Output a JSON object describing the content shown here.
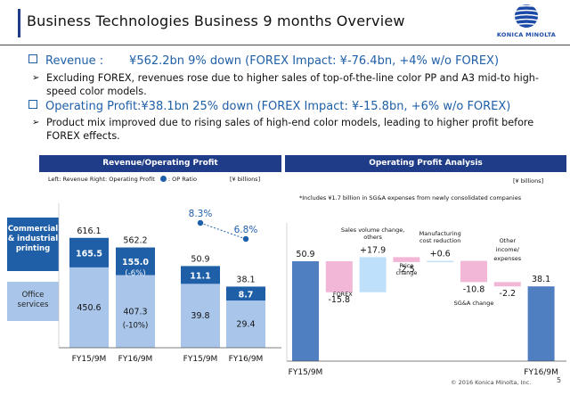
{
  "header": {
    "title": "Business Technologies Business 9 months Overview",
    "logo_text": "KONICA MINOLTA",
    "page_number": "5",
    "copyright": "© 2016 Konica Minolta, Inc."
  },
  "bullets": {
    "revenue_head": "Revenue :       ¥562.2bn  9% down (FOREX Impact: ¥-76.4bn, +4% w/o FOREX)",
    "revenue_body": "Excluding FOREX, revenues rose due to higher sales of top-of-the-line color PP and A3 mid-to high-speed color models.",
    "op_head": "Operating Profit:¥38.1bn  25% down (FOREX Impact: ¥-15.8bn, +6% w/o FOREX)",
    "op_body": "Product mix improved due to rising sales of high-end color models, leading to higher profit before FOREX effects."
  },
  "left_panel": {
    "title": "Revenue/Operating Profit",
    "subtitle": "Left: Revenue  Right: Operating Profit",
    "op_ratio_legend": ": OP Ratio",
    "unit": "[¥ billions]",
    "legend_commercial": "Commercial & industrial printing",
    "legend_office": "Office services"
  },
  "right_panel": {
    "title": "Operating Profit Analysis",
    "unit": "[¥ billions]",
    "note": "*Includes ¥1.7 billion in SG&A expenses from newly consolidated companies"
  },
  "colors": {
    "navy": "#1f3c88",
    "dark_blue": "#1f5fa8",
    "light_blue": "#a9c6ea",
    "waterfall_blue": "#4f7fc1",
    "pink": "#f2b6d7",
    "light_cyan": "#bfe0fb"
  },
  "chart_data": [
    {
      "type": "bar",
      "title": "Revenue",
      "categories": [
        "FY15/9M",
        "FY16/9M"
      ],
      "totals": [
        616.1,
        562.2
      ],
      "series": [
        {
          "name": "Office services",
          "values": [
            450.6,
            407.3
          ]
        },
        {
          "name": "Commercial & industrial printing",
          "values": [
            165.5,
            155.0
          ]
        }
      ],
      "annotations": {
        "office_change": "(-10%)",
        "commercial_change": "(-6%)"
      }
    },
    {
      "type": "bar",
      "title": "Operating Profit",
      "categories": [
        "FY15/9M",
        "FY16/9M"
      ],
      "totals": [
        50.9,
        38.1
      ],
      "series": [
        {
          "name": "Office services",
          "values": [
            39.8,
            29.4
          ]
        },
        {
          "name": "Commercial & industrial printing",
          "values": [
            11.1,
            8.7
          ]
        }
      ],
      "op_ratio": {
        "values": [
          8.3,
          6.8
        ],
        "labels": [
          "8.3%",
          "6.8%"
        ]
      }
    },
    {
      "type": "bar",
      "title": "Operating Profit Analysis",
      "steps": [
        {
          "label": "FY15/9M",
          "value": 50.9,
          "kind": "total",
          "value_label": "50.9"
        },
        {
          "label": "FOREX",
          "value": -15.8,
          "kind": "delta",
          "value_label": "-15.8"
        },
        {
          "label": "Sales volume change, others",
          "value": 17.9,
          "kind": "delta",
          "value_label": "+17.9"
        },
        {
          "label": "Price change",
          "value": -2.5,
          "kind": "delta",
          "value_label": "-2.5"
        },
        {
          "label": "Manufacturing cost reduction",
          "value": 0.6,
          "kind": "delta",
          "value_label": "+0.6"
        },
        {
          "label": "SG&A change",
          "value": -10.8,
          "kind": "delta",
          "value_label": "-10.8"
        },
        {
          "label": "Other income/ expenses",
          "value": -2.2,
          "kind": "delta",
          "value_label": "-2.2"
        },
        {
          "label": "FY16/9M",
          "value": 38.1,
          "kind": "total",
          "value_label": "38.1"
        }
      ]
    }
  ]
}
